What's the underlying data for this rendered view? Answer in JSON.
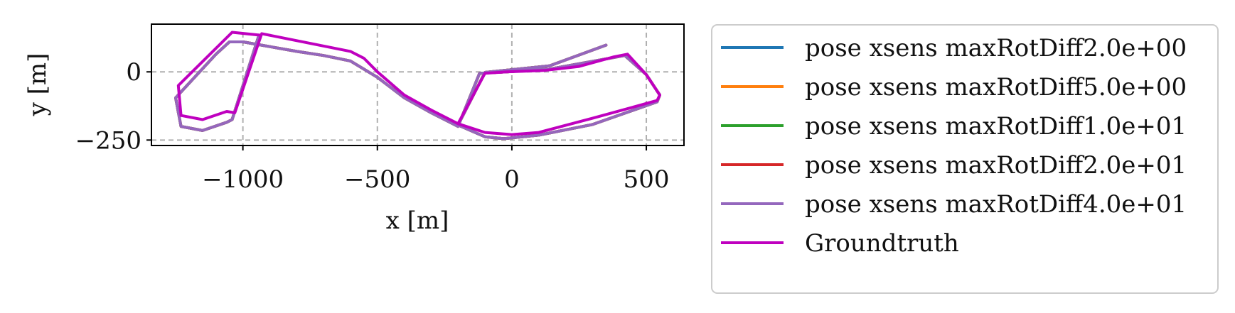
{
  "chart_data": {
    "type": "line",
    "title": "",
    "xlabel": "x [m]",
    "ylabel": "y [m]",
    "xlim": [
      -1340,
      640
    ],
    "ylim": [
      -270,
      175
    ],
    "xticks": [
      -1000,
      -500,
      0,
      500
    ],
    "xtick_labels": [
      "−1000",
      "−500",
      "0",
      "500"
    ],
    "yticks": [
      0,
      -250
    ],
    "ytick_labels": [
      "0",
      "−250"
    ],
    "grid": true,
    "legend_position": "outside-right",
    "series": [
      {
        "name": "pose xsens maxRotDiff2.0e+00",
        "color": "#1f77b4",
        "points": [
          [
            350,
            98
          ],
          [
            140,
            22
          ],
          [
            -100,
            -2
          ],
          [
            -200,
            -195
          ],
          [
            -100,
            -238
          ],
          [
            -30,
            -245
          ],
          [
            100,
            -232
          ],
          [
            300,
            -193
          ],
          [
            540,
            -110
          ],
          [
            550,
            -85
          ],
          [
            500,
            -10
          ],
          [
            420,
            60
          ],
          [
            140,
            10
          ],
          [
            -20,
            0
          ],
          [
            -120,
            -5
          ],
          [
            -200,
            -200
          ],
          [
            -300,
            -150
          ],
          [
            -400,
            -95
          ],
          [
            -500,
            -20
          ],
          [
            -600,
            40
          ],
          [
            -700,
            60
          ],
          [
            -800,
            75
          ],
          [
            -1000,
            110
          ],
          [
            -1050,
            110
          ],
          [
            -1100,
            65
          ],
          [
            -1250,
            -95
          ],
          [
            -1230,
            -200
          ],
          [
            -1150,
            -215
          ],
          [
            -1060,
            -185
          ],
          [
            -1040,
            -175
          ],
          [
            -940,
            135
          ]
        ]
      },
      {
        "name": "pose xsens maxRotDiff5.0e+00",
        "color": "#ff7f0e",
        "points": [
          [
            350,
            98
          ],
          [
            140,
            22
          ],
          [
            -100,
            -2
          ],
          [
            -200,
            -195
          ],
          [
            -100,
            -238
          ],
          [
            -30,
            -245
          ],
          [
            100,
            -232
          ],
          [
            300,
            -193
          ],
          [
            540,
            -110
          ],
          [
            550,
            -85
          ],
          [
            500,
            -10
          ],
          [
            420,
            60
          ],
          [
            140,
            10
          ],
          [
            -20,
            0
          ],
          [
            -120,
            -5
          ],
          [
            -200,
            -200
          ],
          [
            -300,
            -150
          ],
          [
            -400,
            -95
          ],
          [
            -500,
            -20
          ],
          [
            -600,
            40
          ],
          [
            -700,
            60
          ],
          [
            -800,
            75
          ],
          [
            -1000,
            110
          ],
          [
            -1050,
            110
          ],
          [
            -1100,
            65
          ],
          [
            -1250,
            -95
          ],
          [
            -1230,
            -200
          ],
          [
            -1150,
            -215
          ],
          [
            -1060,
            -185
          ],
          [
            -1040,
            -175
          ],
          [
            -940,
            135
          ]
        ]
      },
      {
        "name": "pose xsens maxRotDiff1.0e+01",
        "color": "#2ca02c",
        "points": [
          [
            350,
            98
          ],
          [
            140,
            22
          ],
          [
            -100,
            -2
          ],
          [
            -200,
            -195
          ],
          [
            -100,
            -238
          ],
          [
            -30,
            -245
          ],
          [
            100,
            -232
          ],
          [
            300,
            -193
          ],
          [
            540,
            -110
          ],
          [
            550,
            -85
          ],
          [
            500,
            -10
          ],
          [
            420,
            60
          ],
          [
            140,
            10
          ],
          [
            -20,
            0
          ],
          [
            -120,
            -5
          ],
          [
            -200,
            -200
          ],
          [
            -300,
            -150
          ],
          [
            -400,
            -95
          ],
          [
            -500,
            -20
          ],
          [
            -600,
            40
          ],
          [
            -700,
            60
          ],
          [
            -800,
            75
          ],
          [
            -1000,
            110
          ],
          [
            -1050,
            110
          ],
          [
            -1100,
            65
          ],
          [
            -1250,
            -95
          ],
          [
            -1230,
            -200
          ],
          [
            -1150,
            -215
          ],
          [
            -1060,
            -185
          ],
          [
            -1040,
            -175
          ],
          [
            -940,
            135
          ]
        ]
      },
      {
        "name": "pose xsens maxRotDiff2.0e+01",
        "color": "#d62728",
        "points": [
          [
            350,
            98
          ],
          [
            140,
            22
          ],
          [
            -100,
            -2
          ],
          [
            -200,
            -195
          ],
          [
            -100,
            -238
          ],
          [
            -30,
            -245
          ],
          [
            100,
            -232
          ],
          [
            300,
            -193
          ],
          [
            540,
            -110
          ],
          [
            550,
            -85
          ],
          [
            500,
            -10
          ],
          [
            420,
            60
          ],
          [
            140,
            10
          ],
          [
            -20,
            0
          ],
          [
            -120,
            -5
          ],
          [
            -200,
            -200
          ],
          [
            -300,
            -150
          ],
          [
            -400,
            -95
          ],
          [
            -500,
            -20
          ],
          [
            -600,
            40
          ],
          [
            -700,
            60
          ],
          [
            -800,
            75
          ],
          [
            -1000,
            110
          ],
          [
            -1050,
            110
          ],
          [
            -1100,
            65
          ],
          [
            -1250,
            -95
          ],
          [
            -1230,
            -200
          ],
          [
            -1150,
            -215
          ],
          [
            -1060,
            -185
          ],
          [
            -1040,
            -175
          ],
          [
            -940,
            135
          ]
        ]
      },
      {
        "name": "pose xsens maxRotDiff4.0e+01",
        "color": "#9467bd",
        "points": [
          [
            350,
            98
          ],
          [
            140,
            22
          ],
          [
            -100,
            -2
          ],
          [
            -200,
            -195
          ],
          [
            -100,
            -238
          ],
          [
            -30,
            -245
          ],
          [
            100,
            -232
          ],
          [
            300,
            -193
          ],
          [
            540,
            -110
          ],
          [
            550,
            -85
          ],
          [
            500,
            -10
          ],
          [
            420,
            60
          ],
          [
            140,
            10
          ],
          [
            -20,
            0
          ],
          [
            -120,
            -5
          ],
          [
            -200,
            -200
          ],
          [
            -300,
            -150
          ],
          [
            -400,
            -95
          ],
          [
            -500,
            -20
          ],
          [
            -600,
            40
          ],
          [
            -700,
            60
          ],
          [
            -800,
            75
          ],
          [
            -1000,
            110
          ],
          [
            -1050,
            110
          ],
          [
            -1100,
            65
          ],
          [
            -1250,
            -95
          ],
          [
            -1230,
            -200
          ],
          [
            -1150,
            -215
          ],
          [
            -1060,
            -185
          ],
          [
            -1040,
            -175
          ],
          [
            -940,
            135
          ]
        ]
      },
      {
        "name": "Groundtruth",
        "color": "#bf00bf",
        "points": [
          [
            -940,
            135
          ],
          [
            -1040,
            145
          ],
          [
            -1240,
            -50
          ],
          [
            -1230,
            -160
          ],
          [
            -1150,
            -175
          ],
          [
            -1060,
            -145
          ],
          [
            -1030,
            -150
          ],
          [
            -930,
            140
          ],
          [
            -600,
            75
          ],
          [
            -550,
            50
          ],
          [
            -500,
            0
          ],
          [
            -400,
            -85
          ],
          [
            -300,
            -140
          ],
          [
            -200,
            -190
          ],
          [
            -100,
            -222
          ],
          [
            0,
            -230
          ],
          [
            100,
            -222
          ],
          [
            300,
            -170
          ],
          [
            540,
            -105
          ],
          [
            550,
            -85
          ],
          [
            500,
            -10
          ],
          [
            430,
            65
          ],
          [
            380,
            55
          ],
          [
            250,
            20
          ],
          [
            120,
            5
          ],
          [
            -20,
            0
          ],
          [
            -100,
            -5
          ],
          [
            -200,
            -190
          ]
        ]
      }
    ]
  }
}
